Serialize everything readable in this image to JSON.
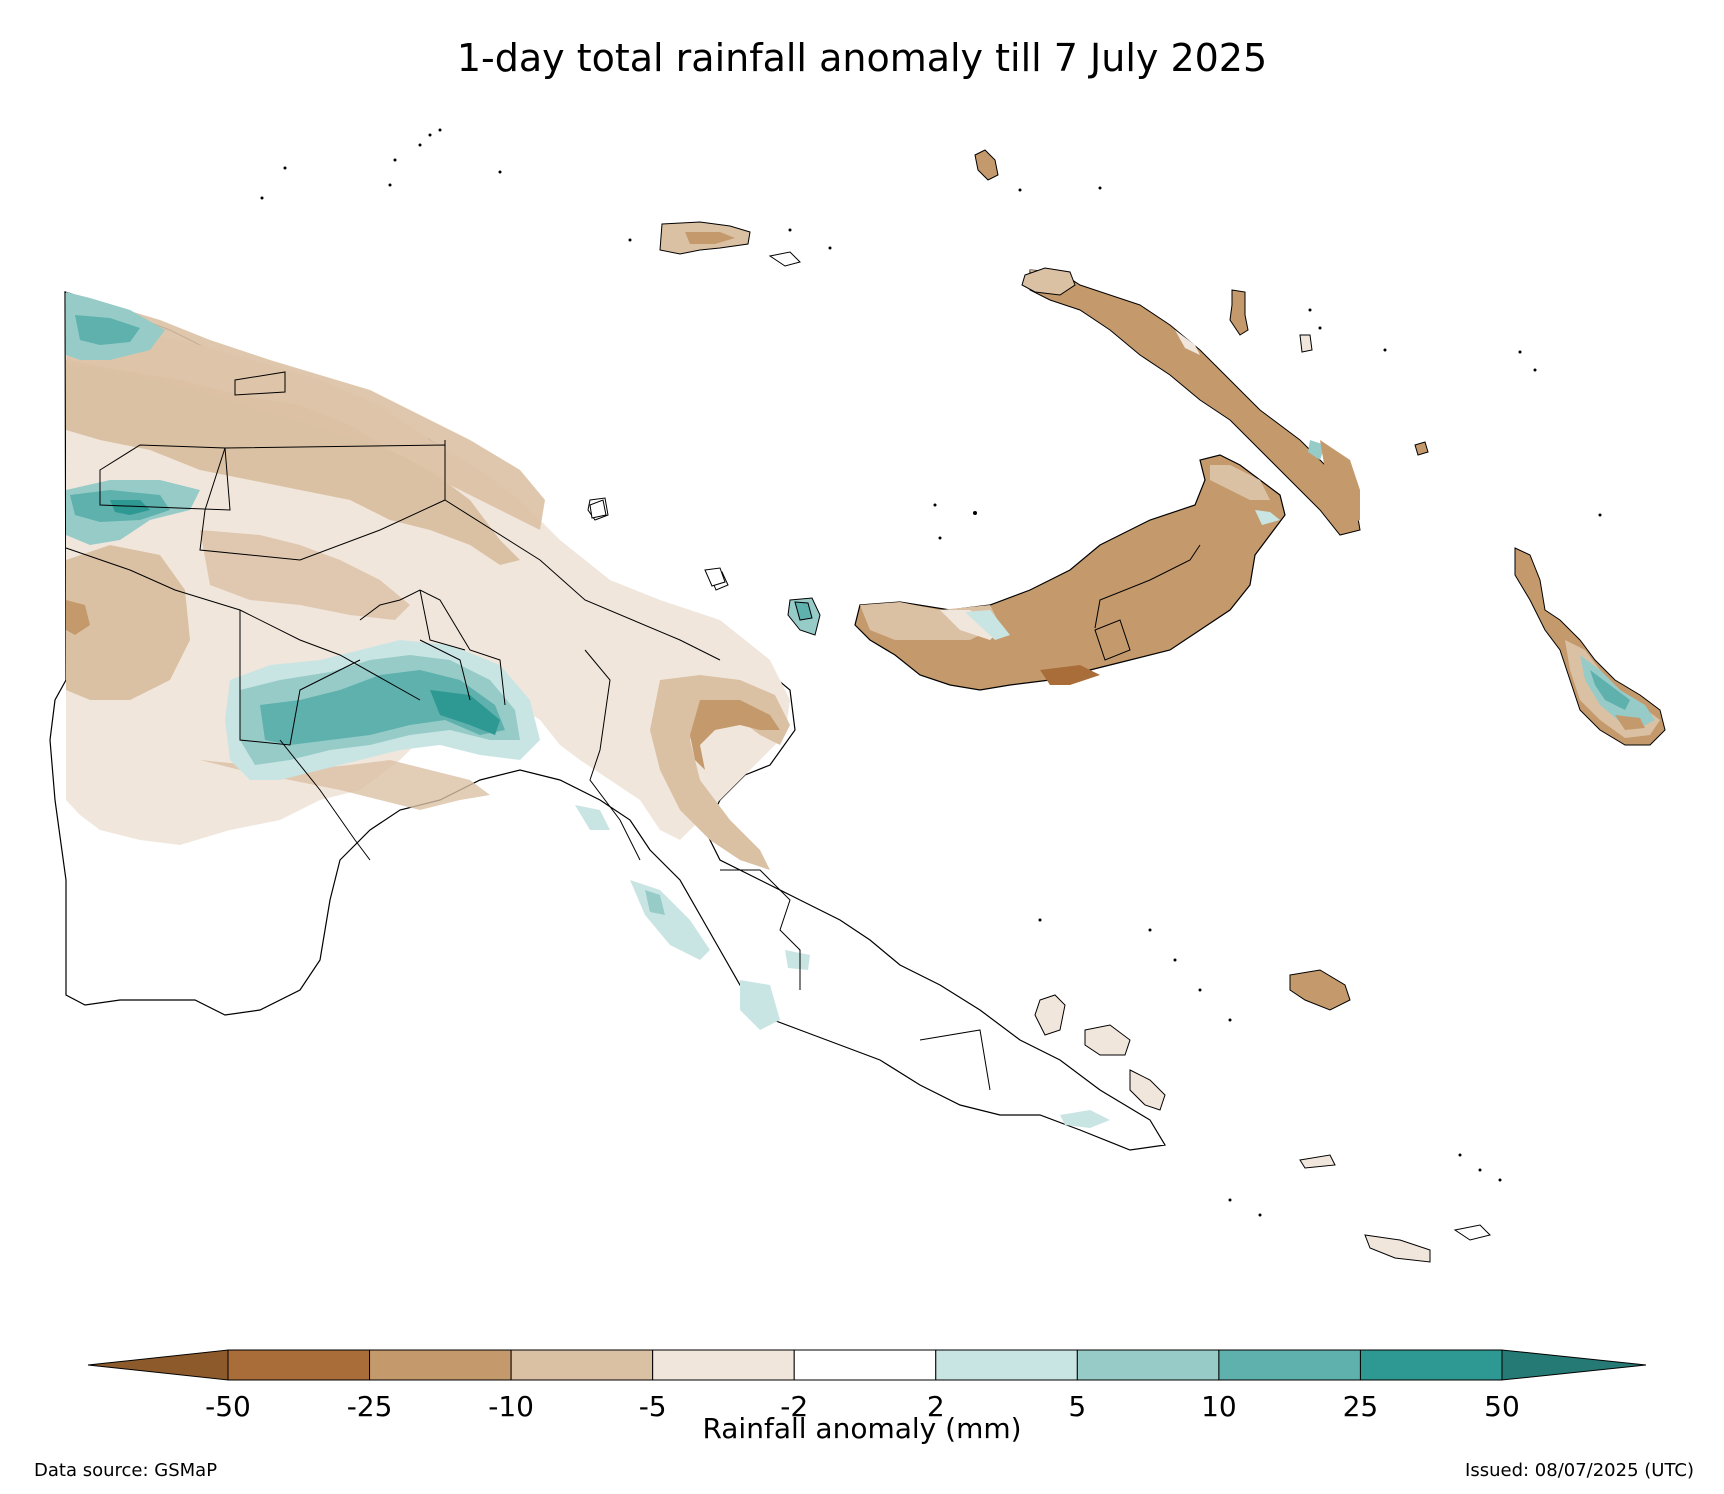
{
  "title": "1-day total rainfall anomaly till 7 July 2025",
  "colorbar": {
    "label": "Rainfall anomaly (mm)",
    "ticks": [
      "-50",
      "-25",
      "-10",
      "-5",
      "-2",
      "2",
      "5",
      "10",
      "25",
      "50"
    ],
    "colors": [
      "#a86d38",
      "#c49a6c",
      "#dbc1a4",
      "#f1e6dc",
      "#ffffff",
      "#c9e5e3",
      "#97cbc8",
      "#5eb1ad",
      "#2e9892"
    ],
    "under_color": "#8c5a2b",
    "over_color": "#267a75"
  },
  "source": "Data source: GSMaP",
  "issued": "Issued: 08/07/2025 (UTC)",
  "palette": {
    "dry_strong": "#a86d38",
    "dry_moderate": "#c49a6c",
    "dry_light": "#dbc1a4",
    "dry_slight": "#f1e6dc",
    "wet_slight": "#c9e5e3",
    "wet_light": "#97cbc8",
    "wet_moderate": "#5eb1ad",
    "wet_strong": "#2e9892"
  }
}
